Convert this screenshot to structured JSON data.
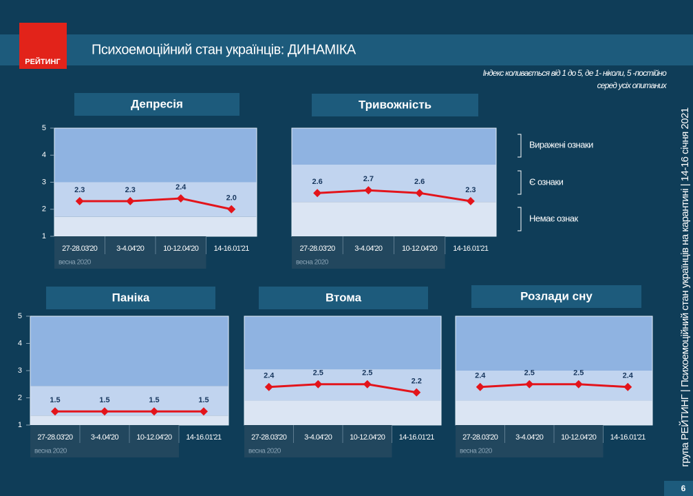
{
  "header": {
    "logo": "РЕЙТИНГ",
    "title": "Психоемоційний стан українців: ДИНАМІКА"
  },
  "note": [
    "Індекс коливається від 1 до 5, де 1- ніколи, 5 -постійно",
    "серед усіх опитаних"
  ],
  "legend": {
    "items": [
      "Виражені ознаки",
      "Є ознаки",
      "Немає ознак"
    ]
  },
  "side_text": "група РЕЙТИНГ  |  Психоемоційний стан українців на карантині  |  14-16 січня 2021",
  "page_number": "6",
  "chart_data": [
    {
      "type": "line",
      "title": "Депресія",
      "categories": [
        "27-28.03'20",
        "3-4.04'20",
        "10-12.04'20",
        "14-16.01'21"
      ],
      "period_label": "весна 2020",
      "values": [
        2.3,
        2.3,
        2.4,
        2.0
      ],
      "value_labels": [
        "2.3",
        "2.3",
        "2.4",
        "2.0"
      ],
      "color": "#e3141b",
      "ylim": [
        1,
        5
      ],
      "yticks": [
        1,
        2,
        3,
        4,
        5
      ],
      "bands": [
        1.72,
        3.0
      ]
    },
    {
      "type": "line",
      "title": "Тривожність",
      "categories": [
        "27-28.03'20",
        "3-4.04'20",
        "10-12.04'20",
        "14-16.01'21"
      ],
      "period_label": "весна 2020",
      "values": [
        2.6,
        2.7,
        2.6,
        2.3
      ],
      "value_labels": [
        "2.6",
        "2.7",
        "2.6",
        "2.3"
      ],
      "color": "#e3141b",
      "ylim": [
        1,
        5
      ],
      "bands": [
        2.27,
        3.65
      ]
    },
    {
      "type": "line",
      "title": "Паніка",
      "categories": [
        "27-28.03'20",
        "3-4.04'20",
        "10-12.04'20",
        "14-16.01'21"
      ],
      "period_label": "весна 2020",
      "values": [
        1.5,
        1.5,
        1.5,
        1.5
      ],
      "value_labels": [
        "1.5",
        "1.5",
        "1.5",
        "1.5"
      ],
      "color": "#e3141b",
      "ylim": [
        1,
        5
      ],
      "yticks": [
        1,
        2,
        3,
        4,
        5
      ],
      "bands": [
        1.35,
        2.44
      ]
    },
    {
      "type": "line",
      "title": "Втома",
      "categories": [
        "27-28.03'20",
        "3-4.04'20",
        "10-12.04'20",
        "14-16.01'21"
      ],
      "period_label": "весна 2020",
      "values": [
        2.4,
        2.5,
        2.5,
        2.2
      ],
      "value_labels": [
        "2.4",
        "2.5",
        "2.5",
        "2.2"
      ],
      "color": "#e3141b",
      "ylim": [
        1,
        5
      ],
      "bands": [
        1.9,
        3.05
      ]
    },
    {
      "type": "line",
      "title": "Розлади сну",
      "categories": [
        "27-28.03'20",
        "3-4.04'20",
        "10-12.04'20",
        "14-16.01'21"
      ],
      "period_label": "весна 2020",
      "values": [
        2.4,
        2.5,
        2.5,
        2.4
      ],
      "value_labels": [
        "2.4",
        "2.5",
        "2.5",
        "2.4"
      ],
      "color": "#e3141b",
      "ylim": [
        1,
        5
      ],
      "bands": [
        1.9,
        3.0
      ]
    }
  ]
}
